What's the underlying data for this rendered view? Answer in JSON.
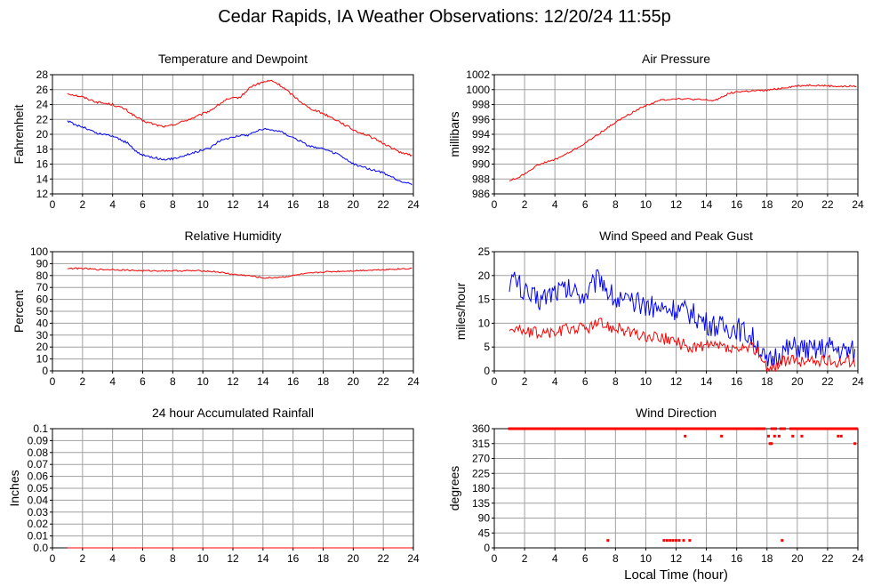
{
  "page": {
    "title": "Cedar Rapids, IA Weather Observations: 12/20/24 11:55p",
    "xlabel": "Local Time (hour)"
  },
  "colors": {
    "red": "#ff0000",
    "blue": "#0000ff",
    "grid": "#a0a0a0",
    "frame": "#000000"
  },
  "chart_data": [
    {
      "id": "temp",
      "type": "line",
      "title": "Temperature and Dewpoint",
      "ylabel": "Fahrenheit",
      "xlim": [
        0,
        24
      ],
      "ylim": [
        12,
        28
      ],
      "xticks": [
        0,
        2,
        4,
        6,
        8,
        10,
        12,
        14,
        16,
        18,
        20,
        22,
        24
      ],
      "yticks": [
        12,
        14,
        16,
        18,
        20,
        22,
        24,
        26,
        28
      ],
      "grid": true,
      "series": [
        {
          "color": "#ff0000",
          "noise": 0.15,
          "x": [
            1.0,
            2.0,
            3.0,
            4.0,
            4.8,
            5.5,
            6.0,
            7.0,
            7.6,
            8.5,
            9.5,
            10.5,
            11.5,
            12.5,
            13.2,
            14.0,
            14.6,
            15.2,
            16.0,
            17.0,
            18.0,
            19.0,
            20.0,
            21.0,
            22.0,
            23.0,
            23.9
          ],
          "y": [
            25.5,
            25.0,
            24.3,
            24.0,
            23.4,
            22.4,
            21.8,
            21.2,
            21.0,
            21.6,
            22.3,
            23.2,
            24.6,
            25.0,
            26.4,
            27.0,
            27.2,
            26.5,
            25.2,
            23.6,
            22.8,
            21.8,
            20.6,
            19.8,
            18.8,
            17.7,
            17.1
          ]
        },
        {
          "color": "#0000ff",
          "noise": 0.15,
          "x": [
            1.0,
            1.5,
            2.0,
            3.0,
            4.0,
            5.0,
            5.5,
            6.0,
            7.0,
            7.5,
            8.5,
            9.5,
            10.5,
            11.0,
            12.0,
            13.0,
            13.5,
            14.0,
            15.0,
            16.0,
            17.0,
            18.0,
            19.0,
            20.0,
            21.0,
            22.0,
            23.0,
            23.9
          ],
          "y": [
            21.8,
            21.3,
            21.0,
            20.1,
            19.8,
            18.8,
            17.8,
            17.2,
            16.8,
            16.5,
            17.0,
            17.6,
            18.2,
            19.0,
            19.7,
            19.9,
            20.4,
            20.7,
            20.5,
            19.6,
            18.5,
            18.0,
            17.3,
            16.0,
            15.4,
            14.8,
            13.8,
            13.3
          ]
        }
      ]
    },
    {
      "id": "pres",
      "type": "line",
      "title": "Air Pressure",
      "ylabel": "millibars",
      "xlim": [
        0,
        24
      ],
      "ylim": [
        986,
        1002
      ],
      "xticks": [
        0,
        2,
        4,
        6,
        8,
        10,
        12,
        14,
        16,
        18,
        20,
        22,
        24
      ],
      "yticks": [
        986,
        988,
        990,
        992,
        994,
        996,
        998,
        1000,
        1002
      ],
      "grid": true,
      "series": [
        {
          "color": "#ff0000",
          "noise": 0.12,
          "x": [
            1.0,
            1.5,
            2.0,
            2.5,
            3.0,
            3.5,
            4.0,
            5.0,
            6.0,
            7.0,
            8.0,
            9.0,
            10.0,
            10.5,
            11.0,
            12.0,
            13.0,
            14.0,
            14.5,
            15.0,
            15.5,
            16.0,
            17.0,
            18.0,
            19.0,
            20.0,
            21.0,
            22.0,
            23.0,
            23.9
          ],
          "y": [
            987.8,
            988.1,
            988.7,
            989.4,
            990.0,
            990.3,
            990.6,
            991.6,
            992.8,
            994.2,
            995.6,
            996.8,
            997.9,
            998.2,
            998.6,
            998.8,
            998.7,
            998.6,
            998.5,
            999.0,
            999.5,
            999.7,
            999.8,
            999.9,
            1000.2,
            1000.5,
            1000.6,
            1000.5,
            1000.4,
            1000.5
          ]
        }
      ]
    },
    {
      "id": "rh",
      "type": "line",
      "title": "Relative Humidity",
      "ylabel": "Percent",
      "xlim": [
        0,
        24
      ],
      "ylim": [
        0,
        100
      ],
      "xticks": [
        0,
        2,
        4,
        6,
        8,
        10,
        12,
        14,
        16,
        18,
        20,
        22,
        24
      ],
      "yticks": [
        0,
        10,
        20,
        30,
        40,
        50,
        60,
        70,
        80,
        90,
        100
      ],
      "grid": true,
      "series": [
        {
          "color": "#ff0000",
          "noise": 0.6,
          "x": [
            1.0,
            2.0,
            3.0,
            4.0,
            6.0,
            8.0,
            10.0,
            11.0,
            12.0,
            13.0,
            14.0,
            14.5,
            15.5,
            16.5,
            18.0,
            20.0,
            22.0,
            23.9
          ],
          "y": [
            86,
            86,
            85,
            85,
            84,
            84,
            84,
            83,
            81,
            80,
            78,
            78,
            79,
            81,
            83,
            84,
            85,
            86
          ]
        }
      ]
    },
    {
      "id": "wind",
      "type": "line",
      "title": "Wind Speed and Peak Gust",
      "ylabel": "miles/hour",
      "xlim": [
        0,
        24
      ],
      "ylim": [
        0,
        25
      ],
      "xticks": [
        0,
        2,
        4,
        6,
        8,
        10,
        12,
        14,
        16,
        18,
        20,
        22,
        24
      ],
      "yticks": [
        0,
        5,
        10,
        15,
        20,
        25
      ],
      "grid": true,
      "series": [
        {
          "color": "#0000ff",
          "noise": 2.5,
          "x": [
            1.0,
            1.5,
            2.0,
            3.0,
            4.0,
            5.0,
            6.0,
            6.5,
            7.0,
            7.5,
            8.0,
            9.0,
            10.0,
            11.0,
            12.0,
            13.0,
            14.0,
            15.0,
            16.0,
            17.0,
            17.5,
            18.0,
            18.5,
            19.0,
            20.0,
            21.0,
            22.0,
            23.0,
            23.8
          ],
          "y": [
            19,
            19,
            16,
            15,
            17,
            17,
            16,
            18,
            20,
            17,
            15,
            14,
            14,
            13,
            13,
            12,
            10,
            9,
            9,
            7,
            5,
            1,
            3,
            4,
            5,
            4,
            5,
            4,
            4
          ]
        },
        {
          "color": "#ff0000",
          "noise": 1.3,
          "x": [
            1.0,
            1.5,
            2.0,
            3.0,
            4.0,
            5.0,
            6.0,
            7.0,
            8.0,
            9.0,
            10.0,
            11.0,
            12.0,
            13.0,
            14.0,
            15.0,
            16.0,
            17.0,
            17.5,
            18.0,
            18.5,
            19.0,
            20.0,
            21.0,
            22.0,
            23.0,
            23.8
          ],
          "y": [
            9,
            9,
            8,
            8,
            8,
            9,
            9,
            10,
            9,
            8,
            7,
            7,
            6,
            5,
            5,
            5,
            4,
            5,
            4,
            0,
            1,
            2,
            2,
            2,
            2,
            2,
            2
          ]
        }
      ]
    },
    {
      "id": "rain",
      "type": "line",
      "title": "24 hour Accumulated Rainfall",
      "ylabel": "Inches",
      "xlim": [
        0,
        24
      ],
      "ylim": [
        0,
        0.1
      ],
      "xticks": [
        0,
        2,
        4,
        6,
        8,
        10,
        12,
        14,
        16,
        18,
        20,
        22,
        24
      ],
      "yticks": [
        0.0,
        0.01,
        0.02,
        0.03,
        0.04,
        0.05,
        0.06,
        0.07,
        0.08,
        0.09,
        0.1
      ],
      "yticklabels": [
        "0.0",
        "0.01",
        "0.02",
        "0.03",
        "0.04",
        "0.05",
        "0.06",
        "0.07",
        "0.08",
        "0.09",
        "0.1"
      ],
      "grid": true,
      "series": [
        {
          "color": "#ff0000",
          "noise": 0,
          "x": [
            1.0,
            23.9
          ],
          "y": [
            0,
            0
          ]
        }
      ]
    },
    {
      "id": "dir",
      "type": "scatter",
      "title": "Wind Direction",
      "ylabel": "degrees",
      "xlabel": "Local Time (hour)",
      "xlim": [
        0,
        24
      ],
      "ylim": [
        0,
        360
      ],
      "xticks": [
        0,
        2,
        4,
        6,
        8,
        10,
        12,
        14,
        16,
        18,
        20,
        22,
        24
      ],
      "yticks": [
        0,
        45,
        90,
        135,
        180,
        225,
        270,
        315,
        360
      ],
      "grid": true,
      "series": [
        {
          "color": "#ff0000",
          "x": [
            7.5,
            11.2,
            11.4,
            11.6,
            11.8,
            12.0,
            12.2,
            12.5,
            12.6,
            12.9,
            15.0,
            18.1,
            18.2,
            18.3,
            18.5,
            18.8,
            19.0,
            19.7,
            20.3,
            22.7,
            22.9,
            23.8
          ],
          "y": [
            22.5,
            22.5,
            22.5,
            22.5,
            22.5,
            22.5,
            22.5,
            22.5,
            337.5,
            22.5,
            337.5,
            337.5,
            315,
            315,
            337.5,
            337.5,
            22.5,
            337.5,
            337.5,
            337.5,
            337.5,
            315
          ],
          "steady": {
            "value": 360,
            "x_start": 1.0,
            "x_end": 23.9,
            "gaps": [
              [
                17.9,
                18.3
              ],
              [
                18.6,
                18.9
              ],
              [
                19.2,
                19.5
              ]
            ]
          }
        }
      ]
    }
  ]
}
